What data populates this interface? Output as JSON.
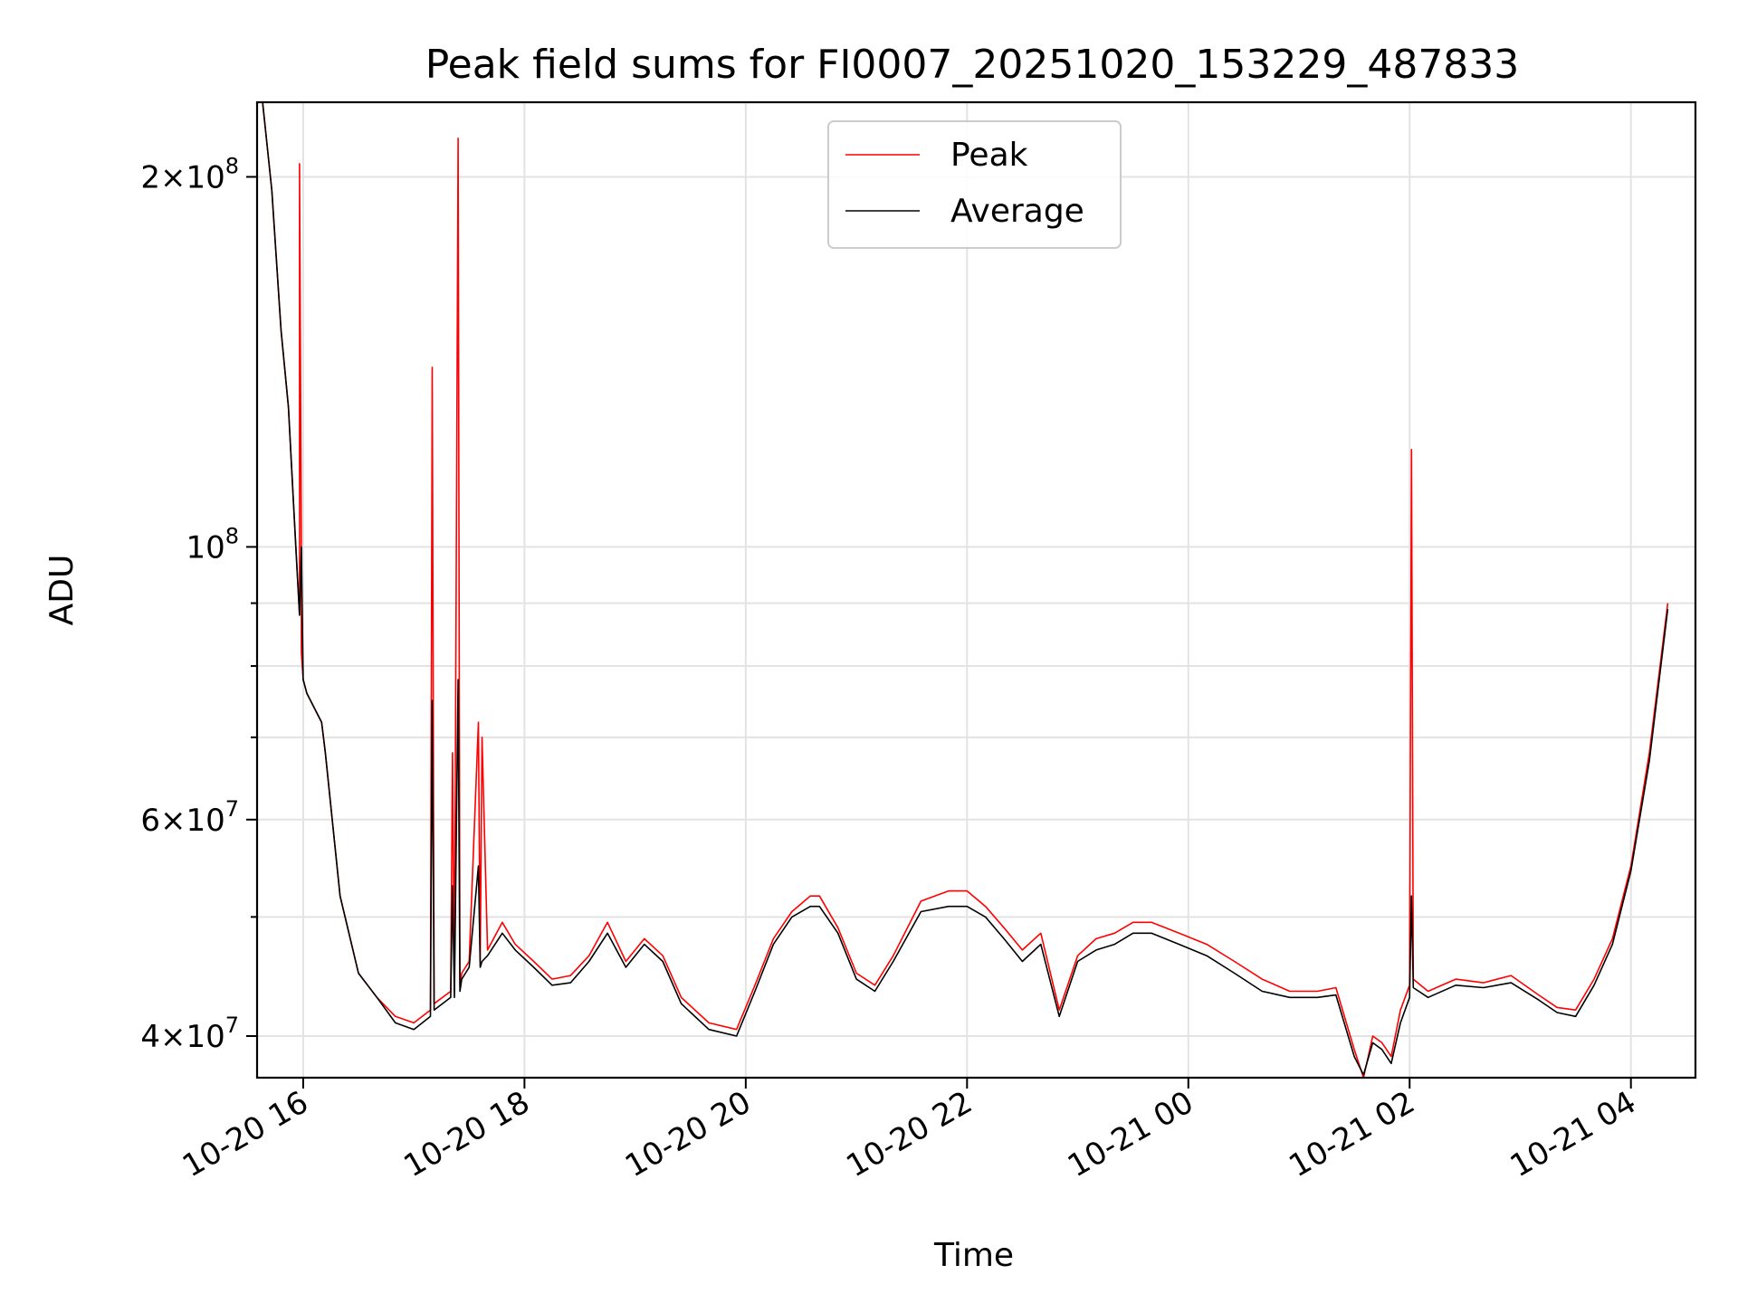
{
  "chart_data": {
    "type": "line",
    "title": "Peak field sums for FI0007_20251020_153229_487833",
    "xlabel": "Time",
    "ylabel": "ADU",
    "yscale": "log",
    "xlim": [
      "2025-10-20 15:35",
      "2025-10-21 04:35"
    ],
    "ylim": [
      37000000,
      230000000
    ],
    "grid": true,
    "legend_position": "top-center",
    "x_ticks": [
      {
        "value": "2025-10-20 16:00",
        "label": "10-20 16"
      },
      {
        "value": "2025-10-20 18:00",
        "label": "10-20 18"
      },
      {
        "value": "2025-10-20 20:00",
        "label": "10-20 20"
      },
      {
        "value": "2025-10-20 22:00",
        "label": "10-20 22"
      },
      {
        "value": "2025-10-21 00:00",
        "label": "10-21 00"
      },
      {
        "value": "2025-10-21 02:00",
        "label": "10-21 02"
      },
      {
        "value": "2025-10-21 04:00",
        "label": "10-21 04"
      }
    ],
    "y_major_ticks": [
      {
        "value": 40000000,
        "mantissa": "4",
        "exponent": "7"
      },
      {
        "value": 60000000,
        "mantissa": "6",
        "exponent": "7"
      },
      {
        "value": 100000000,
        "mantissa": "",
        "exponent": "8"
      },
      {
        "value": 200000000,
        "mantissa": "2",
        "exponent": "8"
      }
    ],
    "y_minor_ticks": [
      50000000,
      70000000,
      80000000,
      90000000
    ],
    "series": [
      {
        "name": "Peak",
        "color": "#ff0000",
        "x": [
          "2025-10-20 15:38",
          "2025-10-20 15:43",
          "2025-10-20 15:48",
          "2025-10-20 15:52",
          "2025-10-20 15:56",
          "2025-10-20 15:58",
          "2025-10-20 15:58",
          "2025-10-20 15:59",
          "2025-10-20 15:59",
          "2025-10-20 16:00",
          "2025-10-20 16:02",
          "2025-10-20 16:10",
          "2025-10-20 16:12",
          "2025-10-20 16:20",
          "2025-10-20 16:30",
          "2025-10-20 16:40",
          "2025-10-20 16:50",
          "2025-10-20 17:00",
          "2025-10-20 17:09",
          "2025-10-20 17:10",
          "2025-10-20 17:11",
          "2025-10-20 17:20",
          "2025-10-20 17:21",
          "2025-10-20 17:22",
          "2025-10-20 17:24",
          "2025-10-20 17:25",
          "2025-10-20 17:26",
          "2025-10-20 17:30",
          "2025-10-20 17:35",
          "2025-10-20 17:36",
          "2025-10-20 17:37",
          "2025-10-20 17:40",
          "2025-10-20 17:48",
          "2025-10-20 17:55",
          "2025-10-20 18:05",
          "2025-10-20 18:15",
          "2025-10-20 18:25",
          "2025-10-20 18:35",
          "2025-10-20 18:45",
          "2025-10-20 18:55",
          "2025-10-20 19:05",
          "2025-10-20 19:15",
          "2025-10-20 19:25",
          "2025-10-20 19:40",
          "2025-10-20 19:55",
          "2025-10-20 20:05",
          "2025-10-20 20:15",
          "2025-10-20 20:25",
          "2025-10-20 20:35",
          "2025-10-20 20:40",
          "2025-10-20 20:50",
          "2025-10-20 21:00",
          "2025-10-20 21:10",
          "2025-10-20 21:20",
          "2025-10-20 21:35",
          "2025-10-20 21:50",
          "2025-10-20 22:00",
          "2025-10-20 22:10",
          "2025-10-20 22:20",
          "2025-10-20 22:30",
          "2025-10-20 22:40",
          "2025-10-20 22:50",
          "2025-10-20 23:00",
          "2025-10-20 23:10",
          "2025-10-20 23:20",
          "2025-10-20 23:30",
          "2025-10-20 23:40",
          "2025-10-20 23:55",
          "2025-10-21 00:10",
          "2025-10-21 00:25",
          "2025-10-21 00:40",
          "2025-10-21 00:55",
          "2025-10-21 01:10",
          "2025-10-21 01:20",
          "2025-10-21 01:30",
          "2025-10-21 01:35",
          "2025-10-21 01:40",
          "2025-10-21 01:45",
          "2025-10-21 01:50",
          "2025-10-21 01:55",
          "2025-10-21 02:00",
          "2025-10-21 02:01",
          "2025-10-21 02:02",
          "2025-10-21 02:10",
          "2025-10-21 02:25",
          "2025-10-21 02:40",
          "2025-10-21 02:55",
          "2025-10-21 03:10",
          "2025-10-21 03:20",
          "2025-10-21 03:30",
          "2025-10-21 03:40",
          "2025-10-21 03:50",
          "2025-10-21 04:00",
          "2025-10-21 04:10",
          "2025-10-21 04:20"
        ],
        "y": [
          230000000,
          195000000,
          150000000,
          130000000,
          100000000,
          88000000,
          205000000,
          100000000,
          82000000,
          78000000,
          76000000,
          72000000,
          68000000,
          52000000,
          45000000,
          43000000,
          41500000,
          41000000,
          42000000,
          140000000,
          42500000,
          43500000,
          68000000,
          43500000,
          215000000,
          44000000,
          45000000,
          46000000,
          72000000,
          46000000,
          70000000,
          47000000,
          49500000,
          47500000,
          46000000,
          44500000,
          44800000,
          46500000,
          49500000,
          46000000,
          48000000,
          46500000,
          43000000,
          41000000,
          40500000,
          44000000,
          48000000,
          50500000,
          52000000,
          52000000,
          49000000,
          45000000,
          44000000,
          46500000,
          51500000,
          52500000,
          52500000,
          51000000,
          49000000,
          47000000,
          48500000,
          42000000,
          46500000,
          48000000,
          48500000,
          49500000,
          49500000,
          48500000,
          47500000,
          46000000,
          44500000,
          43500000,
          43500000,
          43800000,
          39000000,
          37000000,
          40000000,
          39500000,
          38500000,
          42000000,
          44000000,
          120000000,
          44500000,
          43500000,
          44500000,
          44200000,
          44800000,
          43200000,
          42200000,
          42000000,
          44500000,
          48000000,
          55000000,
          68000000,
          90000000
        ]
      },
      {
        "name": "Average",
        "color": "#000000",
        "x": [
          "2025-10-20 15:38",
          "2025-10-20 15:43",
          "2025-10-20 15:48",
          "2025-10-20 15:52",
          "2025-10-20 15:56",
          "2025-10-20 15:58",
          "2025-10-20 15:59",
          "2025-10-20 16:00",
          "2025-10-20 16:02",
          "2025-10-20 16:10",
          "2025-10-20 16:12",
          "2025-10-20 16:20",
          "2025-10-20 16:30",
          "2025-10-20 16:40",
          "2025-10-20 16:50",
          "2025-10-20 17:00",
          "2025-10-20 17:09",
          "2025-10-20 17:10",
          "2025-10-20 17:11",
          "2025-10-20 17:20",
          "2025-10-20 17:21",
          "2025-10-20 17:22",
          "2025-10-20 17:24",
          "2025-10-20 17:25",
          "2025-10-20 17:26",
          "2025-10-20 17:30",
          "2025-10-20 17:35",
          "2025-10-20 17:36",
          "2025-10-20 17:37",
          "2025-10-20 17:40",
          "2025-10-20 17:48",
          "2025-10-20 17:55",
          "2025-10-20 18:05",
          "2025-10-20 18:15",
          "2025-10-20 18:25",
          "2025-10-20 18:35",
          "2025-10-20 18:45",
          "2025-10-20 18:55",
          "2025-10-20 19:05",
          "2025-10-20 19:15",
          "2025-10-20 19:25",
          "2025-10-20 19:40",
          "2025-10-20 19:55",
          "2025-10-20 20:05",
          "2025-10-20 20:15",
          "2025-10-20 20:25",
          "2025-10-20 20:35",
          "2025-10-20 20:40",
          "2025-10-20 20:50",
          "2025-10-20 21:00",
          "2025-10-20 21:10",
          "2025-10-20 21:20",
          "2025-10-20 21:35",
          "2025-10-20 21:50",
          "2025-10-20 22:00",
          "2025-10-20 22:10",
          "2025-10-20 22:20",
          "2025-10-20 22:30",
          "2025-10-20 22:40",
          "2025-10-20 22:50",
          "2025-10-20 23:00",
          "2025-10-20 23:10",
          "2025-10-20 23:20",
          "2025-10-20 23:30",
          "2025-10-20 23:40",
          "2025-10-20 23:55",
          "2025-10-21 00:10",
          "2025-10-21 00:25",
          "2025-10-21 00:40",
          "2025-10-21 00:55",
          "2025-10-21 01:10",
          "2025-10-21 01:20",
          "2025-10-21 01:30",
          "2025-10-21 01:35",
          "2025-10-21 01:40",
          "2025-10-21 01:45",
          "2025-10-21 01:50",
          "2025-10-21 01:55",
          "2025-10-21 02:00",
          "2025-10-21 02:01",
          "2025-10-21 02:02",
          "2025-10-21 02:10",
          "2025-10-21 02:25",
          "2025-10-21 02:40",
          "2025-10-21 02:55",
          "2025-10-21 03:10",
          "2025-10-21 03:20",
          "2025-10-21 03:30",
          "2025-10-21 03:40",
          "2025-10-21 03:50",
          "2025-10-21 04:00",
          "2025-10-21 04:10",
          "2025-10-21 04:20"
        ],
        "y": [
          230000000,
          195000000,
          150000000,
          130000000,
          100000000,
          88000000,
          100000000,
          78000000,
          76000000,
          72000000,
          68000000,
          52000000,
          45000000,
          43000000,
          41000000,
          40500000,
          41500000,
          75000000,
          42000000,
          43000000,
          53000000,
          43000000,
          78000000,
          43500000,
          44500000,
          45500000,
          55000000,
          45500000,
          46000000,
          46500000,
          48500000,
          47000000,
          45500000,
          44000000,
          44200000,
          46000000,
          48500000,
          45500000,
          47500000,
          46000000,
          42500000,
          40500000,
          40000000,
          43500000,
          47500000,
          50000000,
          51000000,
          51000000,
          48500000,
          44500000,
          43500000,
          46000000,
          50500000,
          51000000,
          51000000,
          50000000,
          48000000,
          46000000,
          47500000,
          41500000,
          46000000,
          47000000,
          47500000,
          48500000,
          48500000,
          47500000,
          46500000,
          45000000,
          43500000,
          43000000,
          43000000,
          43200000,
          38500000,
          37200000,
          39500000,
          39000000,
          38000000,
          41000000,
          43000000,
          52000000,
          43800000,
          43000000,
          44000000,
          43800000,
          44200000,
          42800000,
          41800000,
          41500000,
          44000000,
          47500000,
          54500000,
          67000000,
          89000000
        ]
      }
    ]
  }
}
